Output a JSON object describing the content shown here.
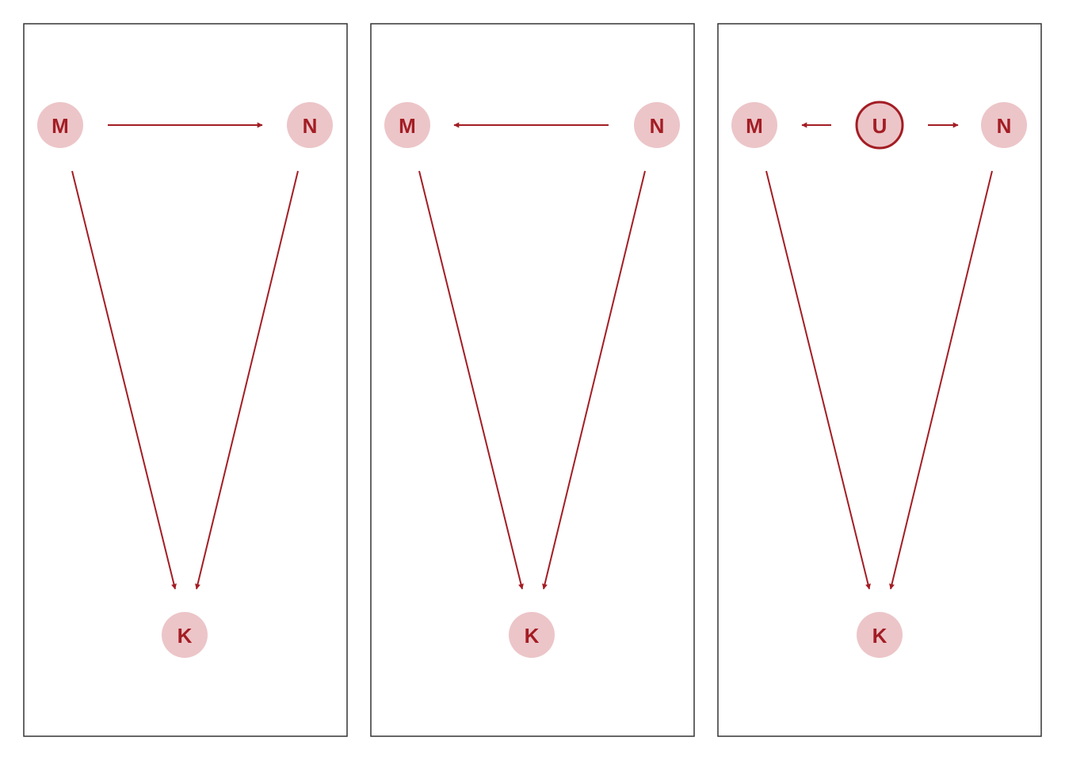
{
  "colors": {
    "node_fill": "#ecc5c8",
    "node_text": "#a31d24",
    "edge": "#a31d24",
    "frame": "#333333"
  },
  "panels": [
    {
      "id": "panel-1",
      "nodes": [
        {
          "id": "M",
          "label": "M"
        },
        {
          "id": "N",
          "label": "N"
        },
        {
          "id": "K",
          "label": "K"
        }
      ],
      "edges": [
        {
          "from": "M",
          "to": "N"
        },
        {
          "from": "M",
          "to": "K"
        },
        {
          "from": "N",
          "to": "K"
        }
      ]
    },
    {
      "id": "panel-2",
      "nodes": [
        {
          "id": "M",
          "label": "M"
        },
        {
          "id": "N",
          "label": "N"
        },
        {
          "id": "K",
          "label": "K"
        }
      ],
      "edges": [
        {
          "from": "N",
          "to": "M"
        },
        {
          "from": "M",
          "to": "K"
        },
        {
          "from": "N",
          "to": "K"
        }
      ]
    },
    {
      "id": "panel-3",
      "nodes": [
        {
          "id": "M",
          "label": "M"
        },
        {
          "id": "U",
          "label": "U",
          "latent": true
        },
        {
          "id": "N",
          "label": "N"
        },
        {
          "id": "K",
          "label": "K"
        }
      ],
      "edges": [
        {
          "from": "U",
          "to": "M"
        },
        {
          "from": "U",
          "to": "N"
        },
        {
          "from": "M",
          "to": "K"
        },
        {
          "from": "N",
          "to": "K"
        }
      ]
    }
  ]
}
